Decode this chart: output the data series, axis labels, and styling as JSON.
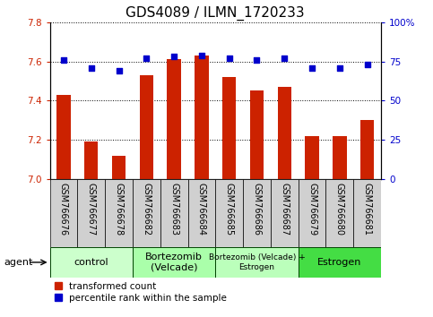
{
  "title": "GDS4089 / ILMN_1720233",
  "samples": [
    "GSM766676",
    "GSM766677",
    "GSM766678",
    "GSM766682",
    "GSM766683",
    "GSM766684",
    "GSM766685",
    "GSM766686",
    "GSM766687",
    "GSM766679",
    "GSM766680",
    "GSM766681"
  ],
  "red_values": [
    7.43,
    7.19,
    7.12,
    7.53,
    7.61,
    7.63,
    7.52,
    7.45,
    7.47,
    7.22,
    7.22,
    7.3
  ],
  "blue_values": [
    76,
    71,
    69,
    77,
    78,
    79,
    77,
    76,
    77,
    71,
    71,
    73
  ],
  "ylim_left": [
    7.0,
    7.8
  ],
  "ylim_right": [
    0,
    100
  ],
  "yticks_left": [
    7.0,
    7.2,
    7.4,
    7.6,
    7.8
  ],
  "yticks_right": [
    0,
    25,
    50,
    75,
    100
  ],
  "groups": [
    {
      "label": "control",
      "start": 0,
      "end": 3,
      "color": "#ccffcc"
    },
    {
      "label": "Bortezomib\n(Velcade)",
      "start": 3,
      "end": 6,
      "color": "#aaffaa"
    },
    {
      "label": "Bortezomib (Velcade) +\nEstrogen",
      "start": 6,
      "end": 9,
      "color": "#bbffbb"
    },
    {
      "label": "Estrogen",
      "start": 9,
      "end": 12,
      "color": "#44dd44"
    }
  ],
  "agent_label": "agent",
  "legend_red": "transformed count",
  "legend_blue": "percentile rank within the sample",
  "bar_color": "#cc2200",
  "dot_color": "#0000cc",
  "bar_bottom": 7.0,
  "title_fontsize": 11,
  "tick_fontsize": 7.5,
  "sample_fontsize": 7,
  "group_fontsize": 8,
  "legend_fontsize": 7.5
}
